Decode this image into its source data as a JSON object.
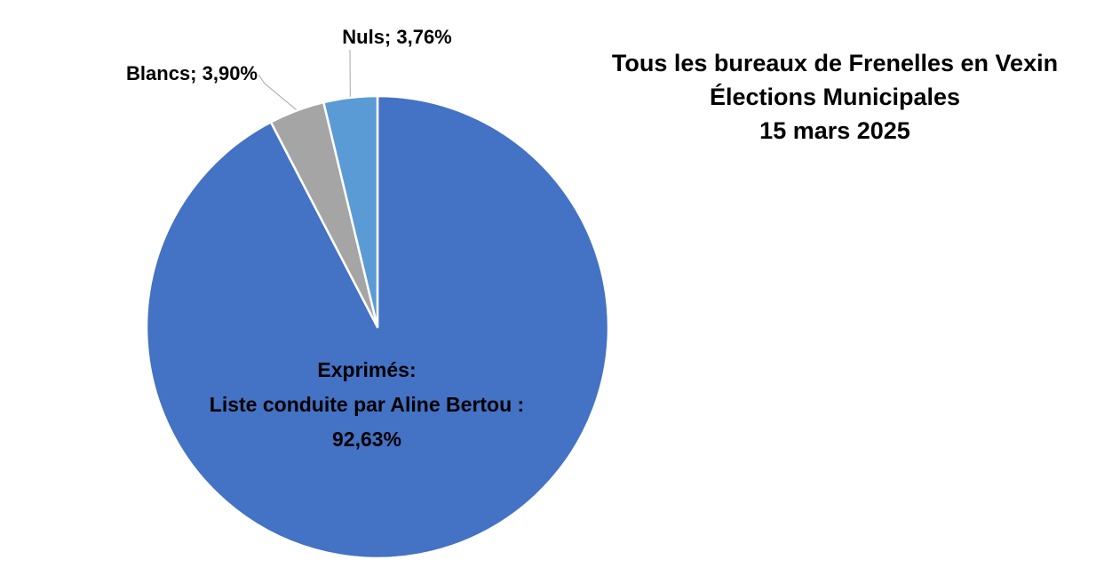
{
  "title": {
    "line1": "Tous les bureaux de Frenelles en Vexin",
    "line2": "Élections Municipales",
    "line3": "15 mars 2025"
  },
  "chart_data": {
    "type": "pie",
    "start": "12 o'clock, clockwise",
    "slices": [
      {
        "key": "exprimes",
        "label_lines": [
          "Exprimés:",
          "Liste conduite par Aline Bertou :",
          "92,63%"
        ],
        "value": 92.63,
        "color": "#4472C4"
      },
      {
        "key": "blancs",
        "label": "Blancs; 3,90%",
        "value": 3.9,
        "color": "#A5A5A5"
      },
      {
        "key": "nuls",
        "label": "Nuls; 3,76%",
        "value": 3.76,
        "color": "#5B9BD5"
      }
    ],
    "legend": "none"
  }
}
